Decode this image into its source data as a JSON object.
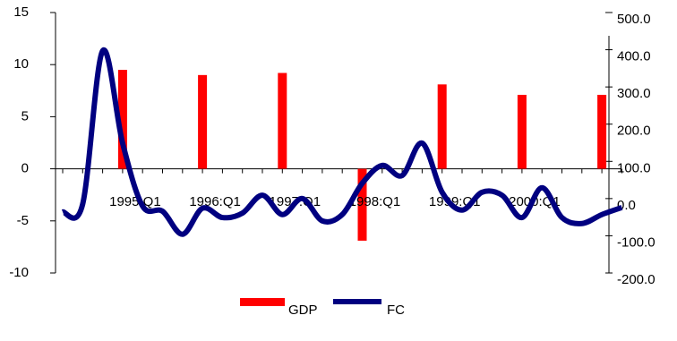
{
  "chart_data": {
    "type": "bar-line",
    "categories": [
      null,
      null,
      null,
      "1995:Q1",
      null,
      null,
      null,
      "1996:Q1",
      null,
      null,
      null,
      "1997:Q1",
      null,
      null,
      null,
      "1998:Q1",
      null,
      null,
      null,
      "1999:Q1",
      null,
      null,
      null,
      "2000:Q1",
      null,
      null,
      null,
      null,
      null
    ],
    "series": [
      {
        "name": "GDP",
        "type": "bar",
        "color": "#ff0000",
        "axis": "y",
        "values": [
          null,
          null,
          null,
          9.5,
          null,
          null,
          null,
          9.0,
          null,
          null,
          null,
          9.2,
          null,
          null,
          null,
          -6.9,
          null,
          null,
          null,
          8.1,
          null,
          null,
          null,
          7.1,
          null,
          null,
          null,
          7.1,
          null
        ]
      },
      {
        "name": "FC",
        "type": "line",
        "color": "#000080",
        "axis": "y2",
        "values": [
          -36,
          -15,
          397,
          149,
          -20,
          -34,
          -96,
          -26,
          -51,
          -39,
          9,
          -43,
          0,
          -60,
          -43,
          41,
          89,
          62,
          149,
          17,
          -31,
          17,
          9,
          -51,
          29,
          -51,
          -67,
          -43,
          -24
        ]
      }
    ],
    "ylim": [
      -10,
      15
    ],
    "yticks": [
      -10,
      -5,
      0,
      5,
      10,
      15
    ],
    "y2lim": [
      -200,
      500
    ],
    "y2ticks": [
      {
        "value": -200,
        "label": "-200.0"
      },
      {
        "value": -100,
        "label": "-100.0"
      },
      {
        "value": 0,
        "label": "0.0"
      },
      {
        "value": 100,
        "label": "100.0"
      },
      {
        "value": 200,
        "label": "200.0"
      },
      {
        "value": 300,
        "label": "300.0"
      },
      {
        "value": 400,
        "label": "400.0"
      },
      {
        "value": 500,
        "label": "500.0"
      }
    ]
  }
}
